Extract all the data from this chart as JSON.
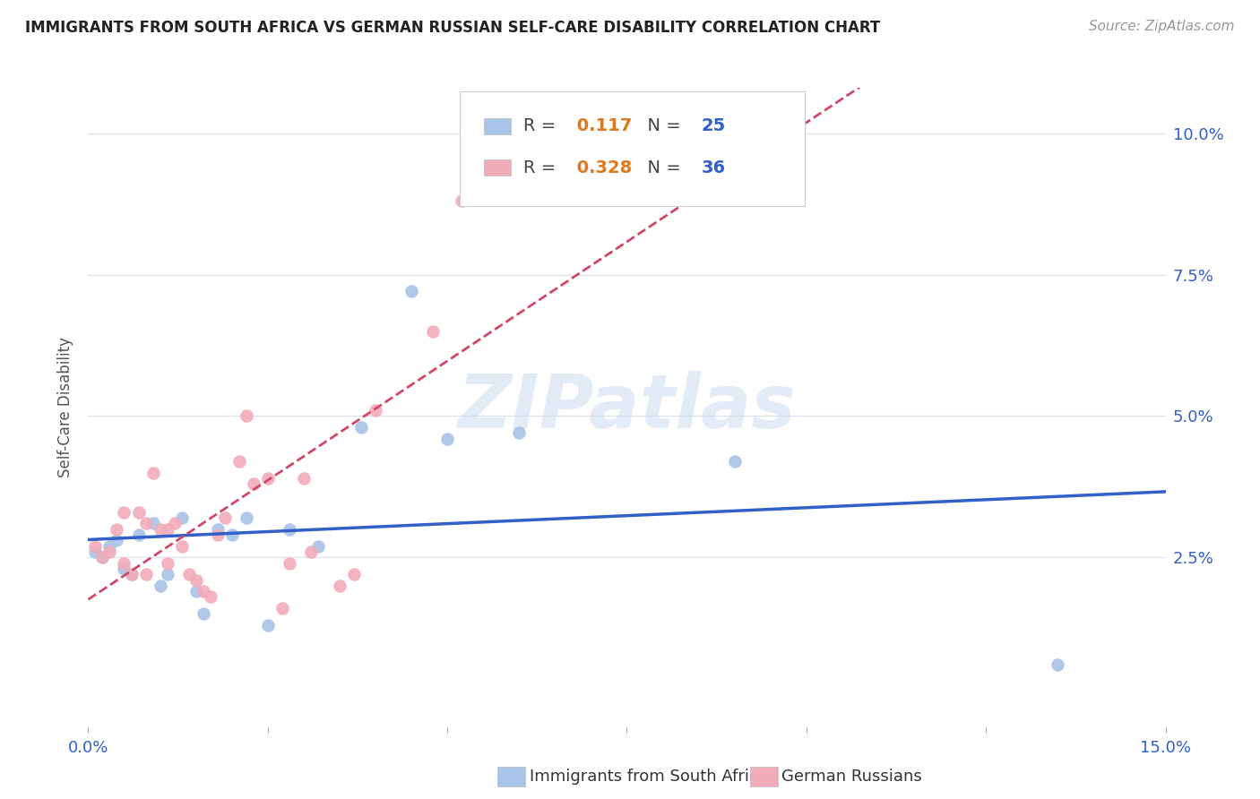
{
  "title": "IMMIGRANTS FROM SOUTH AFRICA VS GERMAN RUSSIAN SELF-CARE DISABILITY CORRELATION CHART",
  "source": "Source: ZipAtlas.com",
  "ylabel": "Self-Care Disability",
  "xlim": [
    0.0,
    0.15
  ],
  "ylim": [
    -0.005,
    0.108
  ],
  "plot_ylim": [
    0.0,
    0.105
  ],
  "yticks": [
    0.025,
    0.05,
    0.075,
    0.1
  ],
  "ytick_labels": [
    "2.5%",
    "5.0%",
    "7.5%",
    "10.0%"
  ],
  "blue_R": 0.117,
  "blue_N": 25,
  "pink_R": 0.328,
  "pink_N": 36,
  "blue_color": "#a8c4e8",
  "pink_color": "#f2abb8",
  "blue_line_color": "#3060c8",
  "pink_line_color": "#d04868",
  "blue_points_x": [
    0.001,
    0.002,
    0.003,
    0.004,
    0.005,
    0.006,
    0.007,
    0.009,
    0.01,
    0.011,
    0.013,
    0.015,
    0.016,
    0.018,
    0.02,
    0.022,
    0.025,
    0.028,
    0.032,
    0.038,
    0.045,
    0.05,
    0.06,
    0.09,
    0.135
  ],
  "blue_points_y": [
    0.026,
    0.025,
    0.027,
    0.028,
    0.023,
    0.022,
    0.029,
    0.031,
    0.02,
    0.022,
    0.032,
    0.019,
    0.015,
    0.03,
    0.029,
    0.032,
    0.013,
    0.03,
    0.027,
    0.048,
    0.072,
    0.046,
    0.047,
    0.042,
    0.006
  ],
  "pink_points_x": [
    0.001,
    0.002,
    0.003,
    0.004,
    0.005,
    0.005,
    0.006,
    0.007,
    0.008,
    0.008,
    0.009,
    0.01,
    0.011,
    0.011,
    0.012,
    0.013,
    0.014,
    0.015,
    0.016,
    0.017,
    0.018,
    0.019,
    0.021,
    0.022,
    0.023,
    0.025,
    0.027,
    0.028,
    0.03,
    0.031,
    0.035,
    0.037,
    0.04,
    0.048,
    0.052,
    0.058
  ],
  "pink_points_y": [
    0.027,
    0.025,
    0.026,
    0.03,
    0.024,
    0.033,
    0.022,
    0.033,
    0.031,
    0.022,
    0.04,
    0.03,
    0.024,
    0.03,
    0.031,
    0.027,
    0.022,
    0.021,
    0.019,
    0.018,
    0.029,
    0.032,
    0.042,
    0.05,
    0.038,
    0.039,
    0.016,
    0.024,
    0.039,
    0.026,
    0.02,
    0.022,
    0.051,
    0.065,
    0.088,
    0.099
  ],
  "background_color": "#ffffff",
  "grid_color": "#dde3ec",
  "watermark_color": "#c8d8f0",
  "title_fontsize": 12,
  "source_fontsize": 11,
  "tick_fontsize": 13,
  "legend_fontsize": 14,
  "ylabel_fontsize": 12,
  "watermark_fontsize": 60
}
